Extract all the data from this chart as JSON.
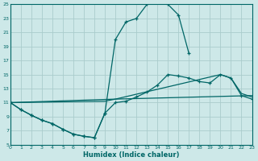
{
  "xlabel": "Humidex (Indice chaleur)",
  "xlim": [
    0,
    23
  ],
  "ylim": [
    5,
    25
  ],
  "xticks": [
    0,
    1,
    2,
    3,
    4,
    5,
    6,
    7,
    8,
    9,
    10,
    11,
    12,
    13,
    14,
    15,
    16,
    17,
    18,
    19,
    20,
    21,
    22,
    23
  ],
  "yticks": [
    5,
    7,
    9,
    11,
    13,
    15,
    17,
    19,
    21,
    23,
    25
  ],
  "bg_color": "#cde8e8",
  "grid_color": "#aacccc",
  "line_color": "#006666",
  "line1": {
    "x": [
      0,
      1,
      2,
      3,
      4,
      5,
      6,
      7,
      8,
      9,
      10,
      11,
      12,
      13,
      14,
      15,
      16,
      17
    ],
    "y": [
      11,
      10,
      9.2,
      8.5,
      8.0,
      7.2,
      6.5,
      6.2,
      6.0,
      9.5,
      20.0,
      22.5,
      23.0,
      25.0,
      25.5,
      25.0,
      23.5,
      18.0
    ]
  },
  "line2": {
    "x": [
      0,
      1,
      2,
      3,
      4,
      5,
      6,
      7,
      8,
      9,
      10,
      11,
      12,
      13,
      14,
      15,
      16,
      17,
      18,
      19,
      20,
      21,
      22,
      23
    ],
    "y": [
      11,
      10,
      9.2,
      8.5,
      8.0,
      7.2,
      6.5,
      6.2,
      6.0,
      9.5,
      11.0,
      11.2,
      11.8,
      12.5,
      13.5,
      15.0,
      14.8,
      14.5,
      14.0,
      13.8,
      15.0,
      14.5,
      12.0,
      11.5
    ]
  },
  "line3": {
    "x": [
      0,
      10,
      23
    ],
    "y": [
      11,
      11.5,
      12.0
    ]
  },
  "line4": {
    "x": [
      0,
      9,
      10,
      20,
      21,
      22,
      23
    ],
    "y": [
      11,
      11.2,
      11.5,
      15.0,
      14.5,
      12.3,
      11.8
    ]
  }
}
